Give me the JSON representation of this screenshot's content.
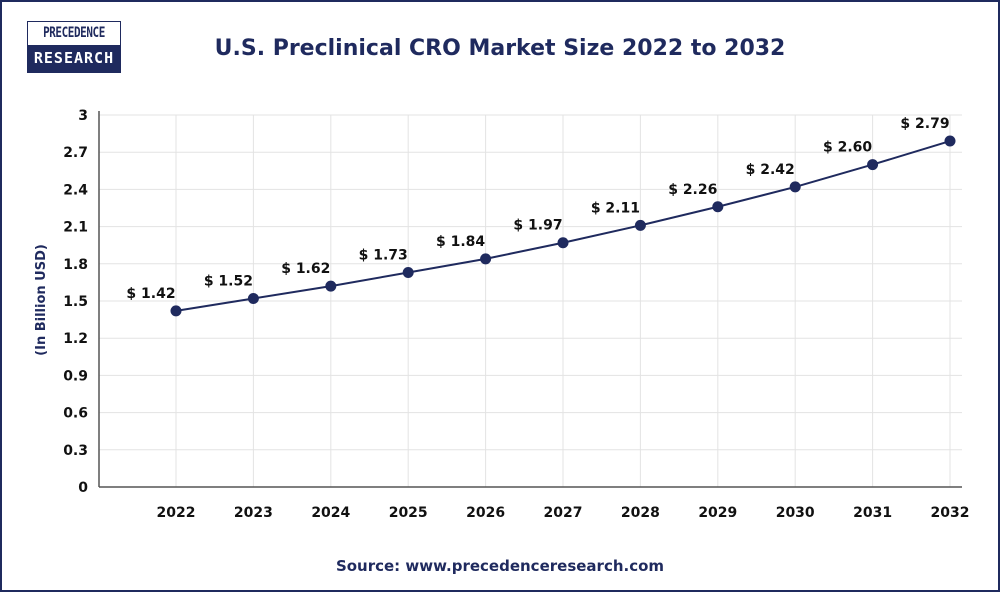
{
  "logo": {
    "line1": "PRECEDENCE",
    "line2": "RESEARCH"
  },
  "colors": {
    "series": "#1f2a5e",
    "grid": "#e3e3e3",
    "axis": "#555555"
  },
  "source": "Source: www.precedenceresearch.com",
  "chart_data": {
    "type": "line",
    "title": "U.S. Preclinical CRO Market Size 2022 to 2032",
    "xlabel": "",
    "ylabel": "(In Billion USD)",
    "categories": [
      "2022",
      "2023",
      "2024",
      "2025",
      "2026",
      "2027",
      "2028",
      "2029",
      "2030",
      "2031",
      "2032"
    ],
    "values": [
      1.42,
      1.52,
      1.62,
      1.73,
      1.84,
      1.97,
      2.11,
      2.26,
      2.42,
      2.6,
      2.79
    ],
    "data_labels": [
      "$ 1.42",
      "$ 1.52",
      "$ 1.62",
      "$ 1.73",
      "$ 1.84",
      "$ 1.97",
      "$ 2.11",
      "$ 2.26",
      "$ 2.42",
      "$ 2.60",
      "$ 2.79"
    ],
    "yticks": [
      "0",
      "0.3",
      "0.6",
      "0.9",
      "1.2",
      "1.5",
      "1.8",
      "2.1",
      "2.4",
      "2.7",
      "3"
    ],
    "ylim": [
      0,
      3
    ],
    "grid": true,
    "legend": "none"
  }
}
